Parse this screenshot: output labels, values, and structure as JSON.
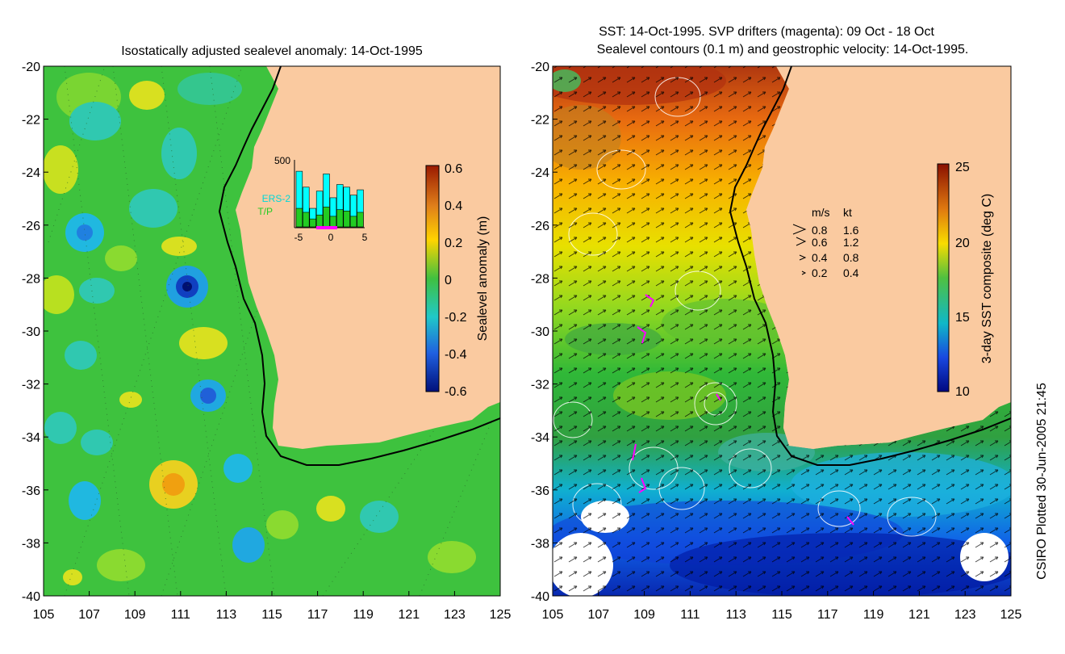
{
  "left_panel": {
    "title": "Isostatically adjusted sealevel anomaly: 14-Oct-1995",
    "colorbar": {
      "label": "Sealevel anomaly (m)",
      "ticks": [
        "0.6",
        "0.4",
        "0.2",
        "0",
        "-0.2",
        "-0.4",
        "-0.6"
      ]
    },
    "inset": {
      "ymax_label": "500",
      "series_labels": [
        "ERS-2",
        "T/P"
      ],
      "x_ticks": [
        "-5",
        "0",
        "5"
      ],
      "ers2_color": "#00ffff",
      "tp_color": "#22cc22",
      "bars_total": [
        420,
        300,
        140,
        270,
        400,
        220,
        320,
        300,
        240,
        280
      ],
      "bars_tp": [
        140,
        110,
        60,
        90,
        150,
        80,
        130,
        120,
        80,
        110
      ]
    }
  },
  "right_panel": {
    "title_line1": "SST: 14-Oct-1995. SVP drifters (magenta): 09 Oct - 18 Oct",
    "title_line2": "Sealevel contours (0.1 m) and geostrophic velocity: 14-Oct-1995.",
    "colorbar": {
      "label": "3-day SST composite (deg C)",
      "ticks": [
        "25",
        "20",
        "15",
        "10"
      ]
    },
    "velocity_legend": {
      "header_ms": "m/s",
      "header_kt": "kt",
      "rows": [
        {
          "ms": "0.8",
          "kt": "1.6"
        },
        {
          "ms": "0.6",
          "kt": "1.2"
        },
        {
          "ms": "0.4",
          "kt": "0.8"
        },
        {
          "ms": "0.2",
          "kt": "0.4"
        }
      ]
    }
  },
  "axes": {
    "y_ticks": [
      "-20",
      "-22",
      "-24",
      "-26",
      "-28",
      "-30",
      "-32",
      "-34",
      "-36",
      "-38",
      "-40"
    ],
    "x_ticks": [
      "105",
      "107",
      "109",
      "111",
      "113",
      "115",
      "117",
      "119",
      "121",
      "123",
      "125"
    ]
  },
  "credit": "CSIRO Plotted 30-Jun-2005 21:45",
  "colors": {
    "land": "#facaa0",
    "ocean_left": "#3ec23e",
    "drifter": "#ff00ff"
  }
}
